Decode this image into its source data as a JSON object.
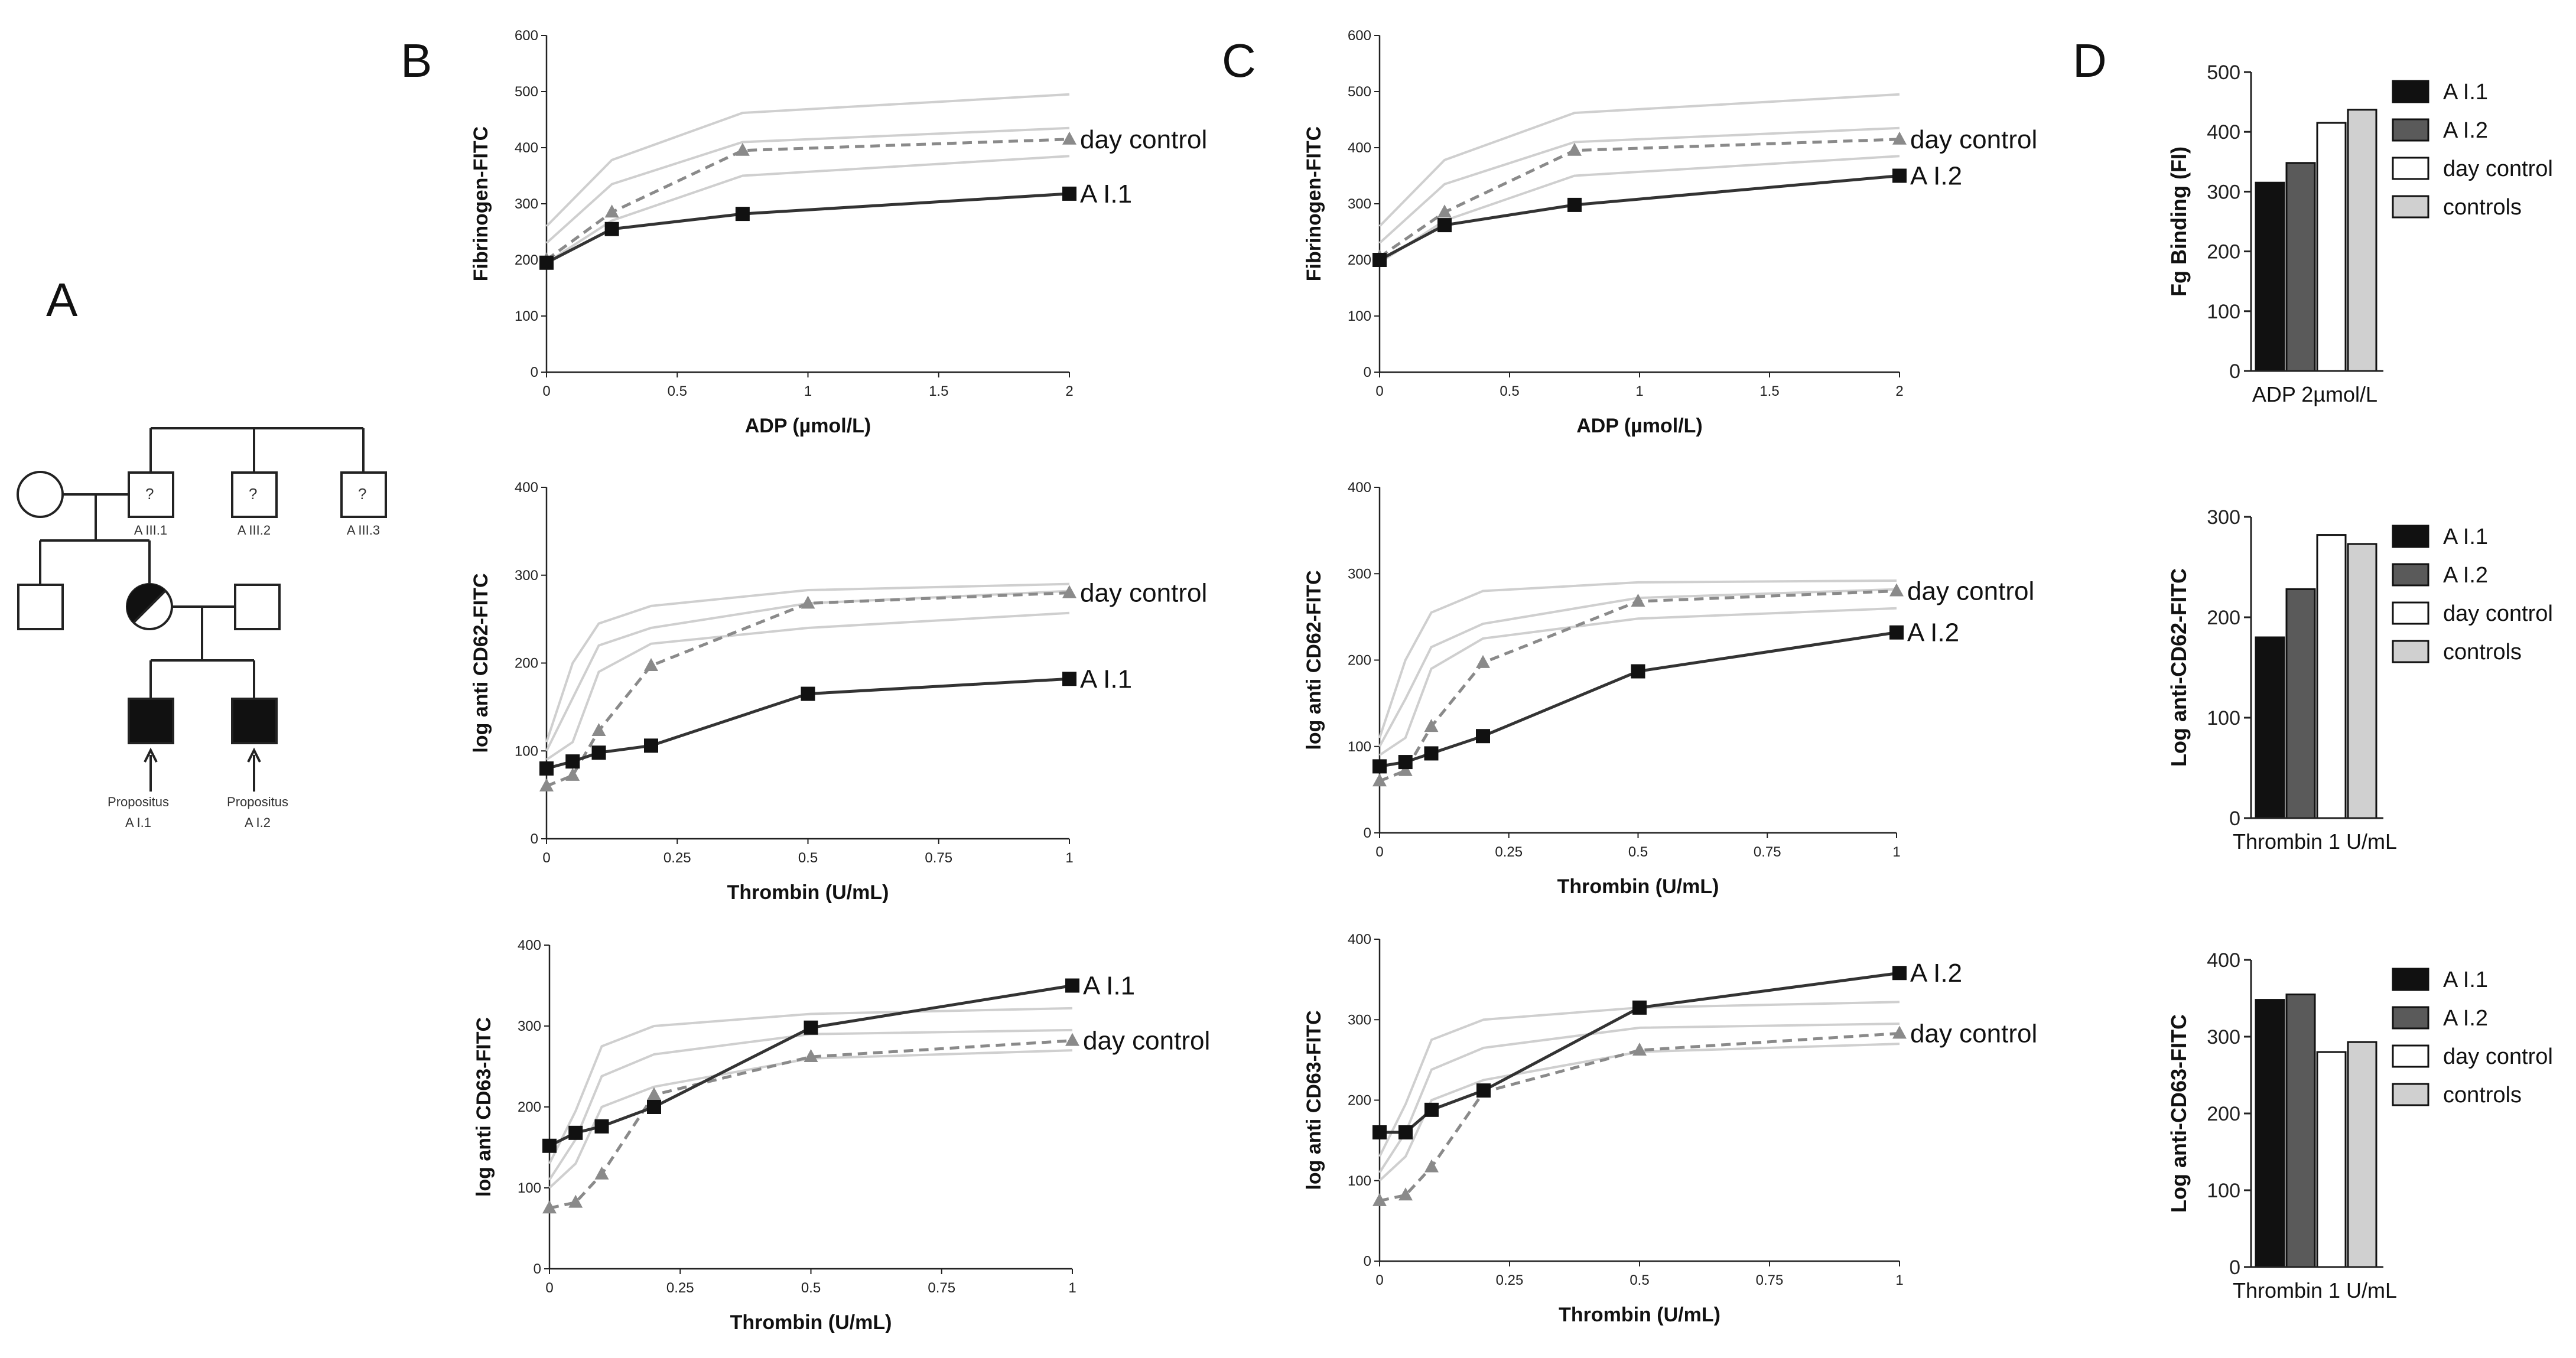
{
  "panel_labels": [
    "A",
    "B",
    "C",
    "D"
  ],
  "pedigree": {
    "labels": [
      "A III.1",
      "A III.2",
      "A III.3"
    ],
    "unknown_mark": "?",
    "propositus_1": [
      "Propositus",
      "A I.1"
    ],
    "propositus_2": [
      "Propositus",
      "A I.2"
    ]
  },
  "chart_data": [
    {
      "id": "B1",
      "type": "line",
      "ylabel": "Fibrinogen-FITC",
      "xlabel": "ADP (µmol/L)",
      "xlim": [
        0,
        2
      ],
      "ylim": [
        0,
        600
      ],
      "xticks": [
        0,
        0.5,
        1,
        1.5,
        2
      ],
      "xtick_labels": [
        "0",
        "0.5",
        "1",
        "1.5",
        "2"
      ],
      "yticks": [
        0,
        100,
        200,
        300,
        400,
        500,
        600
      ],
      "patient": {
        "name": "A I.1",
        "x": [
          0,
          0.25,
          0.75,
          2
        ],
        "y": [
          195,
          255,
          282,
          318
        ]
      },
      "day_control": {
        "name": "day control",
        "x": [
          0,
          0.25,
          0.75,
          2
        ],
        "y": [
          200,
          285,
          395,
          415
        ]
      },
      "control_lines": [
        {
          "x": [
            0,
            0.25,
            0.75,
            2
          ],
          "y": [
            260,
            378,
            462,
            495
          ]
        },
        {
          "x": [
            0,
            0.25,
            0.75,
            2
          ],
          "y": [
            230,
            335,
            410,
            435
          ]
        },
        {
          "x": [
            0,
            0.25,
            0.75,
            2
          ],
          "y": [
            195,
            270,
            350,
            385
          ]
        }
      ]
    },
    {
      "id": "B2",
      "type": "line",
      "ylabel": "log anti CD62-FITC",
      "xlabel": "Thrombin (U/mL)",
      "xlim": [
        0,
        1
      ],
      "ylim": [
        0,
        400
      ],
      "xticks": [
        0,
        0.25,
        0.5,
        0.75,
        1
      ],
      "xtick_labels": [
        "0",
        "0.25",
        "0.5",
        "0.75",
        "1"
      ],
      "yticks": [
        0,
        100,
        200,
        300,
        400
      ],
      "patient": {
        "name": "A I.1",
        "x": [
          0,
          0.05,
          0.1,
          0.2,
          0.5,
          1
        ],
        "y": [
          80,
          88,
          98,
          106,
          165,
          182
        ]
      },
      "day_control": {
        "name": "day control",
        "x": [
          0,
          0.05,
          0.1,
          0.2,
          0.5,
          1
        ],
        "y": [
          60,
          72,
          123,
          197,
          268,
          280
        ]
      },
      "control_lines": [
        {
          "x": [
            0,
            0.05,
            0.1,
            0.2,
            0.5,
            1
          ],
          "y": [
            110,
            200,
            245,
            265,
            283,
            290
          ]
        },
        {
          "x": [
            0,
            0.05,
            0.1,
            0.2,
            0.5,
            1
          ],
          "y": [
            100,
            160,
            220,
            240,
            268,
            282
          ]
        },
        {
          "x": [
            0,
            0.05,
            0.1,
            0.2,
            0.5,
            1
          ],
          "y": [
            90,
            110,
            190,
            222,
            240,
            257
          ]
        }
      ]
    },
    {
      "id": "B3",
      "type": "line",
      "ylabel": "log anti CD63-FITC",
      "xlabel": "Thrombin (U/mL)",
      "xlim": [
        0,
        1
      ],
      "ylim": [
        0,
        400
      ],
      "xticks": [
        0,
        0.25,
        0.5,
        0.75,
        1
      ],
      "xtick_labels": [
        "0",
        "0.25",
        "0.5",
        "0.75",
        "1"
      ],
      "yticks": [
        0,
        100,
        200,
        300,
        400
      ],
      "patient": {
        "name": "A I.1",
        "x": [
          0,
          0.05,
          0.1,
          0.2,
          0.5,
          1
        ],
        "y": [
          152,
          168,
          176,
          200,
          298,
          350
        ]
      },
      "day_control": {
        "name": "day control",
        "x": [
          0,
          0.05,
          0.1,
          0.2,
          0.5,
          1
        ],
        "y": [
          75,
          82,
          117,
          215,
          262,
          282
        ]
      },
      "control_lines": [
        {
          "x": [
            0,
            0.05,
            0.1,
            0.2,
            0.5,
            1
          ],
          "y": [
            130,
            195,
            275,
            300,
            315,
            322
          ]
        },
        {
          "x": [
            0,
            0.05,
            0.1,
            0.2,
            0.5,
            1
          ],
          "y": [
            110,
            160,
            238,
            265,
            290,
            295
          ]
        },
        {
          "x": [
            0,
            0.05,
            0.1,
            0.2,
            0.5,
            1
          ],
          "y": [
            100,
            130,
            200,
            225,
            260,
            270
          ]
        }
      ]
    },
    {
      "id": "C1",
      "type": "line",
      "ylabel": "Fibrinogen-FITC",
      "xlabel": "ADP (µmol/L)",
      "xlim": [
        0,
        2
      ],
      "ylim": [
        0,
        600
      ],
      "xticks": [
        0,
        0.5,
        1,
        1.5,
        2
      ],
      "xtick_labels": [
        "0",
        "0.5",
        "1",
        "1.5",
        "2"
      ],
      "yticks": [
        0,
        100,
        200,
        300,
        400,
        500,
        600
      ],
      "patient": {
        "name": "A I.2",
        "x": [
          0,
          0.25,
          0.75,
          2
        ],
        "y": [
          200,
          262,
          298,
          350
        ]
      },
      "day_control": {
        "name": "day control",
        "x": [
          0,
          0.25,
          0.75,
          2
        ],
        "y": [
          205,
          285,
          395,
          415
        ]
      },
      "control_lines": [
        {
          "x": [
            0,
            0.25,
            0.75,
            2
          ],
          "y": [
            260,
            378,
            462,
            495
          ]
        },
        {
          "x": [
            0,
            0.25,
            0.75,
            2
          ],
          "y": [
            230,
            335,
            410,
            435
          ]
        },
        {
          "x": [
            0,
            0.25,
            0.75,
            2
          ],
          "y": [
            195,
            270,
            350,
            385
          ]
        }
      ]
    },
    {
      "id": "C2",
      "type": "line",
      "ylabel": "log anti CD62-FITC",
      "xlabel": "Thrombin (U/mL)",
      "xlim": [
        0,
        1
      ],
      "ylim": [
        0,
        400
      ],
      "xticks": [
        0,
        0.25,
        0.5,
        0.75,
        1
      ],
      "xtick_labels": [
        "0",
        "0.25",
        "0.5",
        "0.75",
        "1"
      ],
      "yticks": [
        0,
        100,
        200,
        300,
        400
      ],
      "patient": {
        "name": "A I.2",
        "x": [
          0,
          0.05,
          0.1,
          0.2,
          0.5,
          1
        ],
        "y": [
          77,
          82,
          92,
          112,
          187,
          232
        ]
      },
      "day_control": {
        "name": "day control",
        "x": [
          0,
          0.05,
          0.1,
          0.2,
          0.5,
          1
        ],
        "y": [
          60,
          72,
          123,
          197,
          268,
          280
        ]
      },
      "control_lines": [
        {
          "x": [
            0,
            0.05,
            0.1,
            0.2,
            0.5,
            1
          ],
          "y": [
            110,
            200,
            255,
            280,
            290,
            292
          ]
        },
        {
          "x": [
            0,
            0.05,
            0.1,
            0.2,
            0.5,
            1
          ],
          "y": [
            100,
            155,
            215,
            242,
            272,
            282
          ]
        },
        {
          "x": [
            0,
            0.05,
            0.1,
            0.2,
            0.5,
            1
          ],
          "y": [
            90,
            110,
            190,
            225,
            248,
            260
          ]
        }
      ]
    },
    {
      "id": "C3",
      "type": "line",
      "ylabel": "log anti CD63-FITC",
      "xlabel": "Thrombin (U/mL)",
      "xlim": [
        0,
        1
      ],
      "ylim": [
        0,
        400
      ],
      "xticks": [
        0,
        0.25,
        0.5,
        0.75,
        1
      ],
      "xtick_labels": [
        "0",
        "0.25",
        "0.5",
        "0.75",
        "1"
      ],
      "yticks": [
        0,
        100,
        200,
        300,
        400
      ],
      "patient": {
        "name": "A I.2",
        "x": [
          0,
          0.05,
          0.1,
          0.2,
          0.5,
          1
        ],
        "y": [
          160,
          160,
          188,
          212,
          315,
          358
        ]
      },
      "day_control": {
        "name": "day control",
        "x": [
          0,
          0.05,
          0.1,
          0.2,
          0.5,
          1
        ],
        "y": [
          75,
          82,
          117,
          210,
          262,
          283
        ]
      },
      "control_lines": [
        {
          "x": [
            0,
            0.05,
            0.1,
            0.2,
            0.5,
            1
          ],
          "y": [
            130,
            195,
            275,
            300,
            315,
            322
          ]
        },
        {
          "x": [
            0,
            0.05,
            0.1,
            0.2,
            0.5,
            1
          ],
          "y": [
            110,
            160,
            238,
            265,
            290,
            295
          ]
        },
        {
          "x": [
            0,
            0.05,
            0.1,
            0.2,
            0.5,
            1
          ],
          "y": [
            100,
            130,
            200,
            225,
            260,
            270
          ]
        }
      ]
    },
    {
      "id": "D1",
      "type": "bar",
      "ylabel": "Fg Binding (FI)",
      "xlabel": "ADP 2µmol/L",
      "ylim": [
        0,
        500
      ],
      "yticks": [
        0,
        100,
        200,
        300,
        400,
        500
      ],
      "categories": [
        "A I.1",
        "A I.2",
        "day control",
        "controls"
      ],
      "values": [
        315,
        348,
        415,
        437
      ],
      "colors": [
        "#111111",
        "#5a5a5a",
        "#ffffff",
        "#d0d0d0"
      ]
    },
    {
      "id": "D2",
      "type": "bar",
      "ylabel": "Log anti-CD62-FITC",
      "xlabel": "Thrombin 1 U/mL",
      "ylim": [
        0,
        300
      ],
      "yticks": [
        0,
        100,
        200,
        300
      ],
      "categories": [
        "A I.1",
        "A I.2",
        "day control",
        "controls"
      ],
      "values": [
        180,
        228,
        282,
        273
      ],
      "colors": [
        "#111111",
        "#5a5a5a",
        "#ffffff",
        "#d0d0d0"
      ]
    },
    {
      "id": "D3",
      "type": "bar",
      "ylabel": "Log anti-CD63-FITC",
      "xlabel": "Thrombin 1 U/mL",
      "ylim": [
        0,
        400
      ],
      "yticks": [
        0,
        100,
        200,
        300,
        400
      ],
      "categories": [
        "A I.1",
        "A I.2",
        "day control",
        "controls"
      ],
      "values": [
        348,
        355,
        280,
        293
      ],
      "colors": [
        "#111111",
        "#5a5a5a",
        "#ffffff",
        "#d0d0d0"
      ]
    }
  ]
}
